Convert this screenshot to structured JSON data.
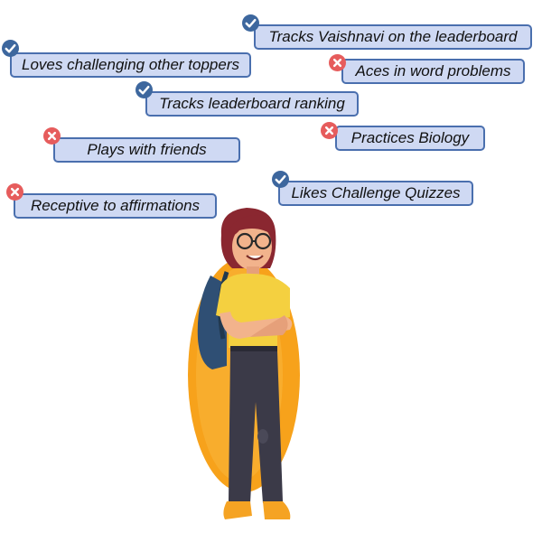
{
  "colors": {
    "tag_fill": "#cfd9f3",
    "tag_border": "#4a6fae",
    "check": "#3d679e",
    "cross": "#e65c5c",
    "halo": "#f7a21b"
  },
  "tags": [
    {
      "label": "Tracks Vaishnavi on the leaderboard",
      "status": "check"
    },
    {
      "label": "Loves challenging other toppers",
      "status": "check"
    },
    {
      "label": "Aces in word problems",
      "status": "cross"
    },
    {
      "label": "Tracks leaderboard ranking",
      "status": "check"
    },
    {
      "label": "Plays with friends",
      "status": "cross"
    },
    {
      "label": "Practices Biology",
      "status": "cross"
    },
    {
      "label": "Likes Challenge Quizzes",
      "status": "check"
    },
    {
      "label": "Receptive to affirmations",
      "status": "cross"
    }
  ]
}
